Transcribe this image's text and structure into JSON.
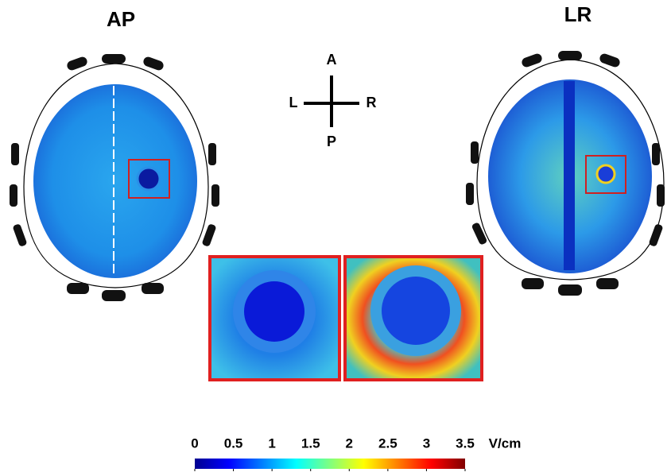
{
  "panels": {
    "left_title": "AP",
    "right_title": "LR"
  },
  "compass": {
    "anterior": "A",
    "posterior": "P",
    "left": "L",
    "right": "R"
  },
  "colorbar": {
    "ticks": [
      0,
      0.5,
      1,
      1.5,
      2,
      2.5,
      3,
      3.5
    ],
    "unit": "V/cm"
  }
}
